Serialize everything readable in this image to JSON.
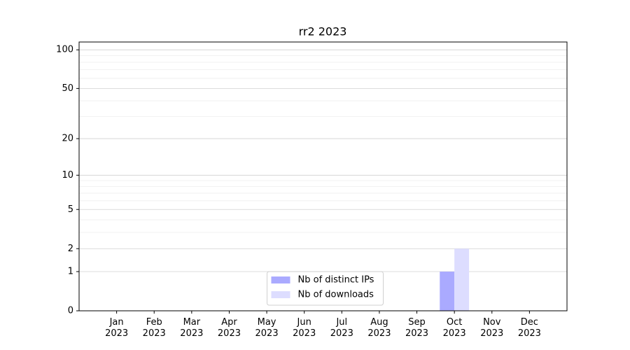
{
  "chart_data": {
    "type": "bar",
    "title": "rr2 2023",
    "categories": [
      "Jan\n2023",
      "Feb\n2023",
      "Mar\n2023",
      "Apr\n2023",
      "May\n2023",
      "Jun\n2023",
      "Jul\n2023",
      "Aug\n2023",
      "Sep\n2023",
      "Oct\n2023",
      "Nov\n2023",
      "Dec\n2023"
    ],
    "series": [
      {
        "name": "Nb of distinct IPs",
        "color": "#aaaaff",
        "values": [
          0,
          0,
          0,
          0,
          0,
          0,
          0,
          0,
          0,
          1,
          0,
          0
        ]
      },
      {
        "name": "Nb of downloads",
        "color": "#ddddff",
        "values": [
          0,
          0,
          0,
          0,
          0,
          0,
          0,
          0,
          0,
          2,
          0,
          0
        ]
      }
    ],
    "yscale": "log1p",
    "ylim": [
      0,
      115
    ],
    "yticks": [
      0,
      1,
      2,
      5,
      10,
      20,
      50,
      100
    ],
    "minor_yticks": [
      3,
      4,
      6,
      7,
      8,
      9,
      30,
      40,
      60,
      70,
      80,
      90
    ],
    "grid": true,
    "legend": "lower center"
  }
}
